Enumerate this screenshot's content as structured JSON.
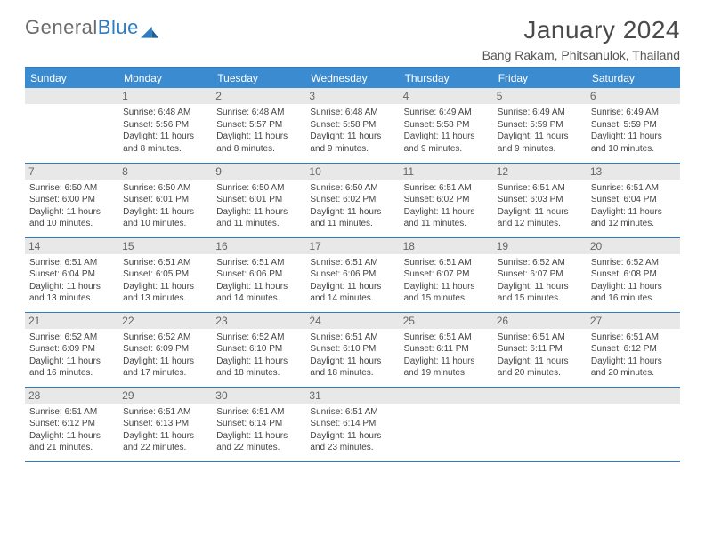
{
  "brand": {
    "part1": "General",
    "part2": "Blue"
  },
  "title": "January 2024",
  "location": "Bang Rakam, Phitsanulok, Thailand",
  "colors": {
    "header_bg": "#3b8bd0",
    "header_text": "#ffffff",
    "rule": "#2e7cc2",
    "daynum_bg": "#e8e8e8",
    "body_text": "#444444",
    "page_bg": "#ffffff"
  },
  "day_headers": [
    "Sunday",
    "Monday",
    "Tuesday",
    "Wednesday",
    "Thursday",
    "Friday",
    "Saturday"
  ],
  "start_weekday": 1,
  "days_in_month": 31,
  "days": {
    "1": {
      "sunrise": "6:48 AM",
      "sunset": "5:56 PM",
      "daylight": "11 hours and 8 minutes."
    },
    "2": {
      "sunrise": "6:48 AM",
      "sunset": "5:57 PM",
      "daylight": "11 hours and 8 minutes."
    },
    "3": {
      "sunrise": "6:48 AM",
      "sunset": "5:58 PM",
      "daylight": "11 hours and 9 minutes."
    },
    "4": {
      "sunrise": "6:49 AM",
      "sunset": "5:58 PM",
      "daylight": "11 hours and 9 minutes."
    },
    "5": {
      "sunrise": "6:49 AM",
      "sunset": "5:59 PM",
      "daylight": "11 hours and 9 minutes."
    },
    "6": {
      "sunrise": "6:49 AM",
      "sunset": "5:59 PM",
      "daylight": "11 hours and 10 minutes."
    },
    "7": {
      "sunrise": "6:50 AM",
      "sunset": "6:00 PM",
      "daylight": "11 hours and 10 minutes."
    },
    "8": {
      "sunrise": "6:50 AM",
      "sunset": "6:01 PM",
      "daylight": "11 hours and 10 minutes."
    },
    "9": {
      "sunrise": "6:50 AM",
      "sunset": "6:01 PM",
      "daylight": "11 hours and 11 minutes."
    },
    "10": {
      "sunrise": "6:50 AM",
      "sunset": "6:02 PM",
      "daylight": "11 hours and 11 minutes."
    },
    "11": {
      "sunrise": "6:51 AM",
      "sunset": "6:02 PM",
      "daylight": "11 hours and 11 minutes."
    },
    "12": {
      "sunrise": "6:51 AM",
      "sunset": "6:03 PM",
      "daylight": "11 hours and 12 minutes."
    },
    "13": {
      "sunrise": "6:51 AM",
      "sunset": "6:04 PM",
      "daylight": "11 hours and 12 minutes."
    },
    "14": {
      "sunrise": "6:51 AM",
      "sunset": "6:04 PM",
      "daylight": "11 hours and 13 minutes."
    },
    "15": {
      "sunrise": "6:51 AM",
      "sunset": "6:05 PM",
      "daylight": "11 hours and 13 minutes."
    },
    "16": {
      "sunrise": "6:51 AM",
      "sunset": "6:06 PM",
      "daylight": "11 hours and 14 minutes."
    },
    "17": {
      "sunrise": "6:51 AM",
      "sunset": "6:06 PM",
      "daylight": "11 hours and 14 minutes."
    },
    "18": {
      "sunrise": "6:51 AM",
      "sunset": "6:07 PM",
      "daylight": "11 hours and 15 minutes."
    },
    "19": {
      "sunrise": "6:52 AM",
      "sunset": "6:07 PM",
      "daylight": "11 hours and 15 minutes."
    },
    "20": {
      "sunrise": "6:52 AM",
      "sunset": "6:08 PM",
      "daylight": "11 hours and 16 minutes."
    },
    "21": {
      "sunrise": "6:52 AM",
      "sunset": "6:09 PM",
      "daylight": "11 hours and 16 minutes."
    },
    "22": {
      "sunrise": "6:52 AM",
      "sunset": "6:09 PM",
      "daylight": "11 hours and 17 minutes."
    },
    "23": {
      "sunrise": "6:52 AM",
      "sunset": "6:10 PM",
      "daylight": "11 hours and 18 minutes."
    },
    "24": {
      "sunrise": "6:51 AM",
      "sunset": "6:10 PM",
      "daylight": "11 hours and 18 minutes."
    },
    "25": {
      "sunrise": "6:51 AM",
      "sunset": "6:11 PM",
      "daylight": "11 hours and 19 minutes."
    },
    "26": {
      "sunrise": "6:51 AM",
      "sunset": "6:11 PM",
      "daylight": "11 hours and 20 minutes."
    },
    "27": {
      "sunrise": "6:51 AM",
      "sunset": "6:12 PM",
      "daylight": "11 hours and 20 minutes."
    },
    "28": {
      "sunrise": "6:51 AM",
      "sunset": "6:12 PM",
      "daylight": "11 hours and 21 minutes."
    },
    "29": {
      "sunrise": "6:51 AM",
      "sunset": "6:13 PM",
      "daylight": "11 hours and 22 minutes."
    },
    "30": {
      "sunrise": "6:51 AM",
      "sunset": "6:14 PM",
      "daylight": "11 hours and 22 minutes."
    },
    "31": {
      "sunrise": "6:51 AM",
      "sunset": "6:14 PM",
      "daylight": "11 hours and 23 minutes."
    }
  },
  "labels": {
    "sunrise": "Sunrise:",
    "sunset": "Sunset:",
    "daylight": "Daylight:"
  }
}
